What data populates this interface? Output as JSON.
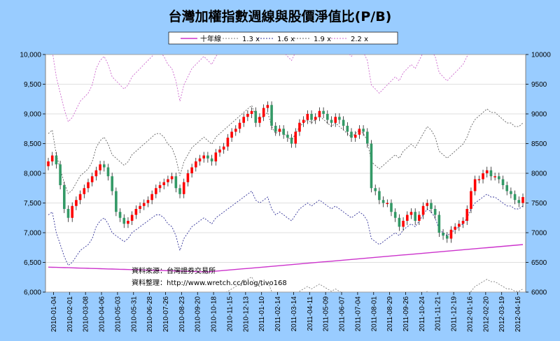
{
  "chart_data": {
    "type": "candlestick-line",
    "title": "台灣加權指數週線與股價淨值比(P/B)",
    "ylim": [
      6000,
      10000
    ],
    "y_ticks_left": [
      "10,000",
      "9,500",
      "9,000",
      "8,500",
      "8,000",
      "7,500",
      "7,000",
      "6,500",
      "6,000"
    ],
    "y_ticks_right": [
      "10000",
      "9500",
      "9000",
      "8500",
      "8000",
      "7500",
      "7000",
      "6500",
      "6000"
    ],
    "x_tick_labels": [
      "2010-01-04",
      "2010-02-01",
      "2010-03-08",
      "2010-04-06",
      "2010-05-03",
      "2010-05-31",
      "2010-06-28",
      "2010-07-26",
      "2010-08-23",
      "2010-09-20",
      "2010-10-18",
      "2010-11-15",
      "2010-12-13",
      "2011-01-10",
      "2011-02-14",
      "2011-03-14",
      "2011-04-11",
      "2011-05-09",
      "2011-06-07",
      "2011-07-04",
      "2011-08-01",
      "2011-08-29",
      "2011-09-26",
      "2011-10-24",
      "2011-11-21",
      "2011-12-19",
      "2012-01-16",
      "2012-02-20",
      "2012-03-19",
      "2012-04-16"
    ],
    "legend": [
      {
        "name": "十年線",
        "color": "#cc33cc",
        "dash": "solid"
      },
      {
        "name": "1.3 x",
        "color": "#808080",
        "dash": "dashed"
      },
      {
        "name": "1.6 x",
        "color": "#333399",
        "dash": "dashed"
      },
      {
        "name": "1.9 x",
        "color": "#606060",
        "dash": "dashed"
      },
      {
        "name": "2.2 x",
        "color": "#cc66cc",
        "dash": "dashed"
      }
    ],
    "up_color": "#ff0000",
    "down_color": "#339966",
    "weekly_close": [
      8200,
      8300,
      8150,
      7800,
      7400,
      7250,
      7450,
      7550,
      7650,
      7750,
      7850,
      7950,
      8050,
      8150,
      8100,
      7950,
      7700,
      7350,
      7250,
      7150,
      7200,
      7300,
      7400,
      7450,
      7500,
      7550,
      7650,
      7750,
      7800,
      7850,
      7900,
      7950,
      7750,
      7650,
      7850,
      8000,
      8100,
      8200,
      8250,
      8300,
      8250,
      8200,
      8350,
      8400,
      8450,
      8600,
      8700,
      8750,
      8850,
      8950,
      9000,
      9050,
      8850,
      8950,
      9100,
      9150,
      8800,
      8700,
      8750,
      8650,
      8600,
      8500,
      8700,
      8850,
      8900,
      9000,
      8900,
      8950,
      9050,
      9000,
      8900,
      8850,
      8950,
      8900,
      8800,
      8700,
      8600,
      8650,
      8750,
      8700,
      8500,
      7750,
      7700,
      7550,
      7500,
      7500,
      7350,
      7250,
      7100,
      7200,
      7300,
      7350,
      7200,
      7300,
      7450,
      7500,
      7400,
      7300,
      7000,
      6950,
      6900,
      7050,
      7100,
      7150,
      7200,
      7400,
      7700,
      7900,
      7900,
      8000,
      8050,
      7950,
      7950,
      7900,
      7800,
      7700,
      7650,
      7550,
      7500,
      7600
    ],
    "weekly_change": [
      1,
      1,
      -1,
      -1,
      -1,
      -1,
      1,
      1,
      1,
      1,
      1,
      1,
      1,
      1,
      -1,
      -1,
      -1,
      -1,
      -1,
      -1,
      1,
      1,
      1,
      1,
      1,
      1,
      1,
      1,
      1,
      1,
      1,
      1,
      -1,
      -1,
      1,
      1,
      1,
      1,
      1,
      1,
      -1,
      -1,
      1,
      1,
      1,
      1,
      1,
      1,
      1,
      1,
      1,
      1,
      -1,
      1,
      1,
      1,
      -1,
      -1,
      1,
      -1,
      -1,
      -1,
      1,
      1,
      1,
      1,
      -1,
      1,
      1,
      -1,
      -1,
      -1,
      1,
      -1,
      -1,
      -1,
      -1,
      1,
      1,
      -1,
      -1,
      -1,
      -1,
      -1,
      -1,
      1,
      -1,
      -1,
      -1,
      1,
      1,
      1,
      -1,
      1,
      1,
      1,
      -1,
      -1,
      -1,
      -1,
      -1,
      1,
      1,
      1,
      1,
      1,
      1,
      1,
      1,
      1,
      1,
      -1,
      1,
      -1,
      -1,
      -1,
      -1,
      -1,
      -1,
      1
    ],
    "ten_year_line": {
      "start": 6420,
      "flat_until_week": 40,
      "mid": 6340,
      "end": 6800
    },
    "band_multipliers": {
      "1.3 x": 0.8125,
      "1.6 x": 1.0,
      "1.9 x": 1.1875,
      "2.2 x": 1.375
    },
    "band_base": [
      7300,
      7350,
      7000,
      6800,
      6600,
      6450,
      6500,
      6600,
      6700,
      6750,
      6800,
      6900,
      7100,
      7200,
      7250,
      7150,
      7000,
      6950,
      6900,
      6850,
      6900,
      7000,
      7050,
      7100,
      7150,
      7200,
      7250,
      7300,
      7300,
      7250,
      7150,
      7100,
      6950,
      6700,
      6900,
      7000,
      7100,
      7150,
      7200,
      7250,
      7200,
      7150,
      7250,
      7300,
      7350,
      7400,
      7450,
      7500,
      7550,
      7600,
      7650,
      7700,
      7550,
      7500,
      7550,
      7600,
      7400,
      7300,
      7350,
      7300,
      7250,
      7200,
      7300,
      7400,
      7450,
      7500,
      7450,
      7500,
      7550,
      7500,
      7450,
      7400,
      7450,
      7400,
      7350,
      7300,
      7250,
      7300,
      7350,
      7300,
      7200,
      6900,
      6850,
      6800,
      6850,
      6900,
      6950,
      7000,
      6950,
      7050,
      7100,
      7150,
      7100,
      7200,
      7300,
      7400,
      7350,
      7250,
      7050,
      7000,
      6950,
      7000,
      7050,
      7100,
      7150,
      7250,
      7400,
      7500,
      7550,
      7600,
      7650,
      7600,
      7600,
      7550,
      7500,
      7450,
      7450,
      7400,
      7400,
      7450
    ]
  },
  "notes": {
    "source": "資料來源：台灣證券交易所",
    "compiler": "資料整理：http://www.wretch.cc/blog/tivo168"
  }
}
